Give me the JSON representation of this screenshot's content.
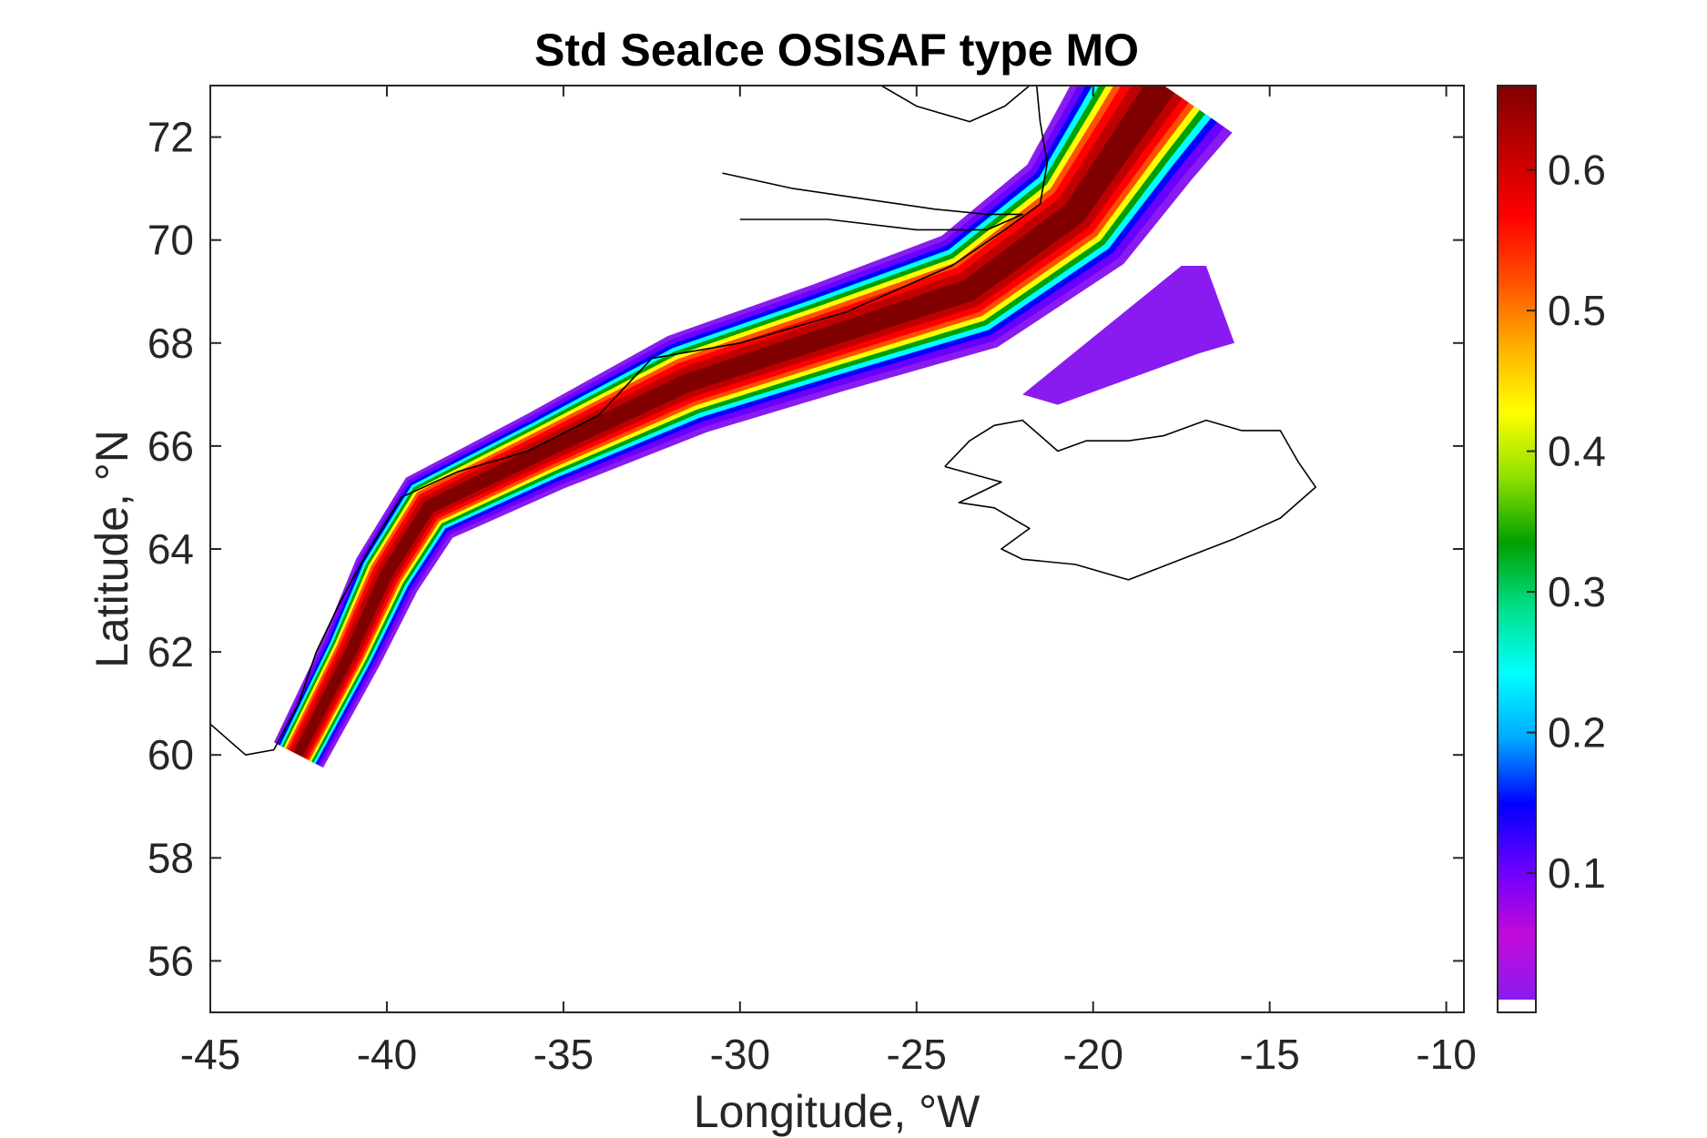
{
  "chart_data": {
    "type": "heatmap",
    "title": "Std SeaIce OSISAF type MO",
    "xlabel": "Longitude, °W",
    "ylabel": "Latitude, °N",
    "xlim": [
      -45,
      -9.5
    ],
    "ylim": [
      55,
      73
    ],
    "x_ticks": [
      -45,
      -40,
      -35,
      -30,
      -25,
      -20,
      -15,
      -10
    ],
    "y_ticks": [
      56,
      58,
      60,
      62,
      64,
      66,
      68,
      70,
      72
    ],
    "colorbar": {
      "range": [
        0.01,
        0.66
      ],
      "ticks": [
        0.1,
        0.2,
        0.3,
        0.4,
        0.5,
        0.6
      ],
      "colormap": [
        "#8a1bf0",
        "#c20ad8",
        "#6a00ff",
        "#0000ff",
        "#00aaff",
        "#00ffff",
        "#00e08a",
        "#00a000",
        "#90e000",
        "#ffff00",
        "#ffb000",
        "#ff5000",
        "#ff0000",
        "#c00000",
        "#800000"
      ]
    },
    "ice_band": {
      "centerline": [
        {
          "lon": -42.5,
          "lat": 60.0,
          "width": 0.8
        },
        {
          "lon": -41.0,
          "lat": 62.0,
          "width": 0.9
        },
        {
          "lon": -40.0,
          "lat": 63.5,
          "width": 1.0
        },
        {
          "lon": -38.8,
          "lat": 64.8,
          "width": 1.1
        },
        {
          "lon": -35.5,
          "lat": 65.9,
          "width": 1.2
        },
        {
          "lon": -31.5,
          "lat": 67.2,
          "width": 1.5
        },
        {
          "lon": -27.5,
          "lat": 68.1,
          "width": 1.6
        },
        {
          "lon": -23.5,
          "lat": 69.0,
          "width": 1.8
        },
        {
          "lon": -20.5,
          "lat": 70.5,
          "width": 2.0
        },
        {
          "lon": -19.0,
          "lat": 72.0,
          "width": 2.2
        },
        {
          "lon": -18.0,
          "lat": 73.0,
          "width": 2.4
        }
      ],
      "low_ice_region": [
        {
          "lon": -22.0,
          "lat": 67.0
        },
        {
          "lon": -17.5,
          "lat": 69.5
        },
        {
          "lon": -16.8,
          "lat": 69.5
        },
        {
          "lon": -16.0,
          "lat": 68.0
        },
        {
          "lon": -17.0,
          "lat": 67.8
        },
        {
          "lon": -21.0,
          "lat": 66.8
        }
      ]
    },
    "coastlines": {
      "greenland_east": [
        {
          "lon": -45.0,
          "lat": 60.6
        },
        {
          "lon": -44.0,
          "lat": 60.0
        },
        {
          "lon": -43.2,
          "lat": 60.1
        },
        {
          "lon": -42.5,
          "lat": 61.0
        },
        {
          "lon": -42.0,
          "lat": 62.0
        },
        {
          "lon": -41.3,
          "lat": 63.0
        },
        {
          "lon": -40.5,
          "lat": 64.0
        },
        {
          "lon": -39.6,
          "lat": 65.0
        },
        {
          "lon": -38.0,
          "lat": 65.5
        },
        {
          "lon": -36.0,
          "lat": 65.9
        },
        {
          "lon": -34.0,
          "lat": 66.6
        },
        {
          "lon": -32.5,
          "lat": 67.7
        },
        {
          "lon": -30.0,
          "lat": 68.0
        },
        {
          "lon": -27.0,
          "lat": 68.6
        },
        {
          "lon": -24.0,
          "lat": 69.5
        },
        {
          "lon": -22.5,
          "lat": 70.2
        },
        {
          "lon": -21.5,
          "lat": 70.7
        },
        {
          "lon": -21.3,
          "lat": 71.5
        },
        {
          "lon": -21.5,
          "lat": 72.3
        },
        {
          "lon": -21.6,
          "lat": 73.0
        }
      ],
      "scoresby_fjord": [
        {
          "lon": -30.5,
          "lat": 71.3
        },
        {
          "lon": -28.5,
          "lat": 71.0
        },
        {
          "lon": -26.5,
          "lat": 70.8
        },
        {
          "lon": -24.5,
          "lat": 70.6
        },
        {
          "lon": -23.0,
          "lat": 70.5
        },
        {
          "lon": -22.0,
          "lat": 70.5
        },
        {
          "lon": -23.0,
          "lat": 70.2
        },
        {
          "lon": -25.0,
          "lat": 70.2
        },
        {
          "lon": -27.5,
          "lat": 70.4
        },
        {
          "lon": -30.0,
          "lat": 70.4
        }
      ],
      "northern_fjords": [
        {
          "lon": -26.0,
          "lat": 73.0
        },
        {
          "lon": -25.0,
          "lat": 72.6
        },
        {
          "lon": -23.5,
          "lat": 72.3
        },
        {
          "lon": -22.5,
          "lat": 72.6
        },
        {
          "lon": -21.8,
          "lat": 73.0
        }
      ],
      "iceland": [
        {
          "lon": -24.2,
          "lat": 65.6
        },
        {
          "lon": -23.5,
          "lat": 66.1
        },
        {
          "lon": -22.8,
          "lat": 66.4
        },
        {
          "lon": -22.0,
          "lat": 66.5
        },
        {
          "lon": -21.0,
          "lat": 65.9
        },
        {
          "lon": -20.2,
          "lat": 66.1
        },
        {
          "lon": -19.0,
          "lat": 66.1
        },
        {
          "lon": -18.0,
          "lat": 66.2
        },
        {
          "lon": -16.8,
          "lat": 66.5
        },
        {
          "lon": -15.8,
          "lat": 66.3
        },
        {
          "lon": -14.7,
          "lat": 66.3
        },
        {
          "lon": -14.2,
          "lat": 65.7
        },
        {
          "lon": -13.7,
          "lat": 65.2
        },
        {
          "lon": -14.7,
          "lat": 64.6
        },
        {
          "lon": -16.0,
          "lat": 64.2
        },
        {
          "lon": -17.5,
          "lat": 63.8
        },
        {
          "lon": -19.0,
          "lat": 63.4
        },
        {
          "lon": -20.5,
          "lat": 63.7
        },
        {
          "lon": -22.0,
          "lat": 63.8
        },
        {
          "lon": -22.6,
          "lat": 64.0
        },
        {
          "lon": -21.8,
          "lat": 64.4
        },
        {
          "lon": -22.8,
          "lat": 64.8
        },
        {
          "lon": -23.8,
          "lat": 64.9
        },
        {
          "lon": -22.6,
          "lat": 65.3
        },
        {
          "lon": -24.2,
          "lat": 65.6
        }
      ]
    }
  }
}
